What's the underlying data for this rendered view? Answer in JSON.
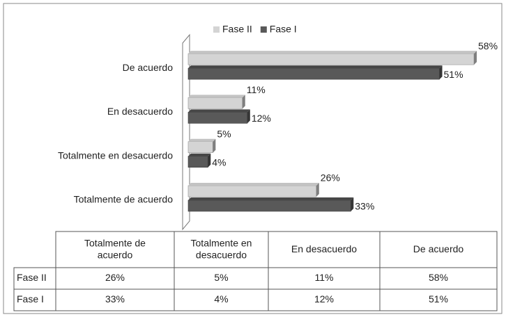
{
  "chart_data": {
    "type": "bar",
    "orientation": "horizontal",
    "categories": [
      "Totalmente de acuerdo",
      "Totalmente en desacuerdo",
      "En desacuerdo",
      "De acuerdo"
    ],
    "series": [
      {
        "name": "Fase II",
        "color": "#d4d4d4",
        "values": [
          26,
          5,
          11,
          58
        ],
        "value_labels": [
          "26%",
          "5%",
          "11%",
          "58%"
        ]
      },
      {
        "name": "Fase I",
        "color": "#595959",
        "values": [
          33,
          4,
          12,
          51
        ],
        "value_labels": [
          "33%",
          "4%",
          "12%",
          "51%"
        ]
      }
    ],
    "legend": "top"
  }
}
